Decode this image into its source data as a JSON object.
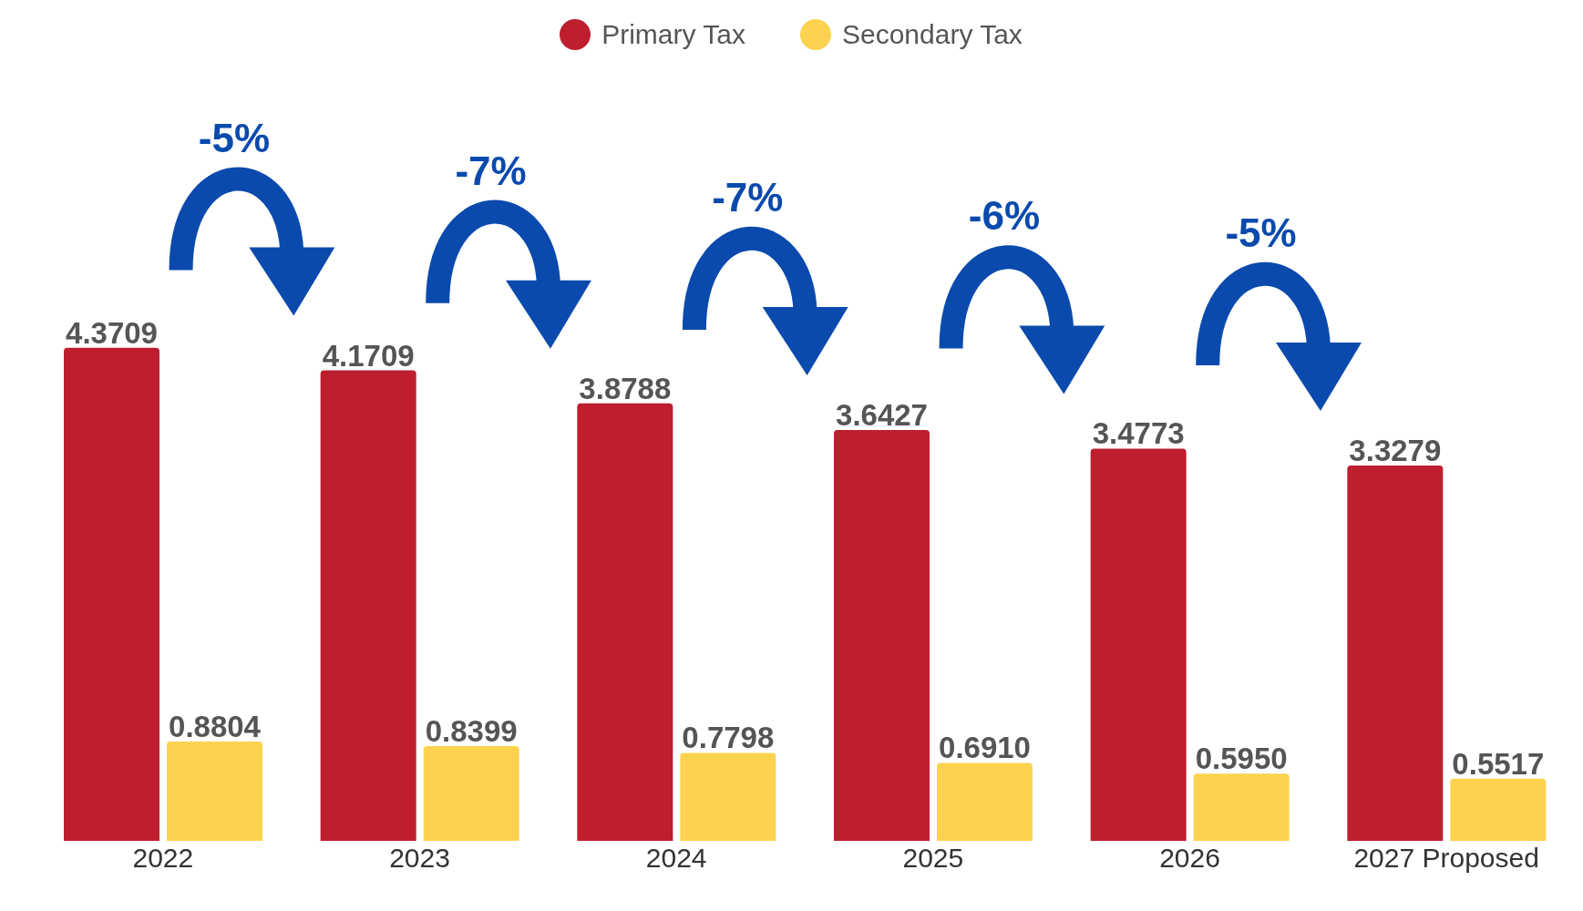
{
  "chart_data": {
    "type": "bar",
    "categories": [
      "2022",
      "2023",
      "2024",
      "2025",
      "2026",
      "2027 Proposed"
    ],
    "series": [
      {
        "name": "Primary Tax",
        "color": "#be1e2d",
        "values": [
          4.3709,
          4.1709,
          3.8788,
          3.6427,
          3.4773,
          3.3279
        ]
      },
      {
        "name": "Secondary Tax",
        "color": "#fdd24e",
        "values": [
          0.8804,
          0.8399,
          0.7798,
          0.691,
          0.595,
          0.5517
        ],
        "value_labels": [
          "0.8804",
          "0.8399",
          "0.7798",
          "0.6910",
          "0.5950",
          "0.5517"
        ]
      }
    ],
    "annotations": [
      "-5%",
      "-7%",
      "-7%",
      "-6%",
      "-5%"
    ],
    "data_labels": true,
    "legend": "top",
    "grid": false
  }
}
